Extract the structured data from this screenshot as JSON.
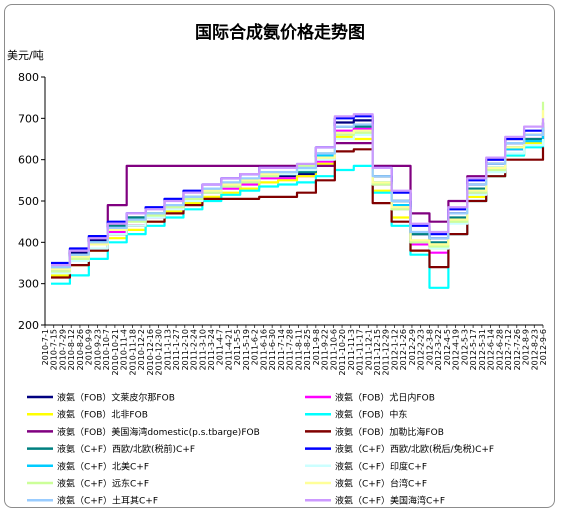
{
  "chart_data": {
    "type": "line",
    "title": "国际合成氨价格走势图",
    "ylabel": "美元/吨",
    "ylim": [
      200,
      800
    ],
    "yticks": [
      200,
      300,
      400,
      500,
      600,
      700,
      800
    ],
    "grid": false,
    "legend_position": "bottom",
    "x_tick_labels": [
      "2010-7-1",
      "2010-7-15",
      "2010-7-29",
      "2010-8-12",
      "2010-8-26",
      "2010-9-9",
      "2010-9-23",
      "2010-10-7",
      "2010-10-21",
      "2010-11-4",
      "2010-11-18",
      "2010-12-2",
      "2010-12-16",
      "2010-12-30",
      "2011-1-13",
      "2011-1-27",
      "2011-2-10",
      "2011-2-24",
      "2011-3-10",
      "2011-3-24",
      "2011-4-7",
      "2011-4-21",
      "2011-5-5",
      "2011-5-19",
      "2011-6-2",
      "2011-6-16",
      "2011-6-30",
      "2011-7-14",
      "2011-7-28",
      "2011-8-11",
      "2011-8-25",
      "2011-9-8",
      "2011-9-22",
      "2011-10-6",
      "2011-10-20",
      "2011-11-3",
      "2011-11-17",
      "2011-12-1",
      "2011-12-15",
      "2011-12-29",
      "2012-1-12",
      "2012-1-26",
      "2012-2-9",
      "2012-2-23",
      "2012-3-8",
      "2012-3-22",
      "2012-4-5",
      "2012-4-19",
      "2012-5-3",
      "2012-5-17",
      "2012-5-31",
      "2012-6-14",
      "2012-6-28",
      "2012-7-12",
      "2012-7-26",
      "2012-8-9",
      "2012-8-23",
      "2012-9-6"
    ],
    "x": [
      "2010-7",
      "2010-8",
      "2010-9",
      "2010-10",
      "2010-11",
      "2010-12",
      "2011-1",
      "2011-2",
      "2011-3",
      "2011-4",
      "2011-5",
      "2011-6",
      "2011-7",
      "2011-8",
      "2011-9",
      "2011-10",
      "2011-11",
      "2011-12",
      "2012-1",
      "2012-2",
      "2012-3",
      "2012-4",
      "2012-5",
      "2012-6",
      "2012-7",
      "2012-8",
      "2012-9"
    ],
    "series": [
      {
        "name": "液氨（FOB）文莱皮尔那FOB",
        "color": "#000080",
        "values": [
          345,
          375,
          405,
          440,
          460,
          470,
          490,
          510,
          525,
          535,
          545,
          560,
          560,
          565,
          610,
          690,
          695,
          560,
          500,
          420,
          410,
          470,
          540,
          590,
          640,
          660,
          690
        ]
      },
      {
        "name": "液氨（FOB）尤日内FOB",
        "color": "#ff00ff",
        "values": [
          330,
          360,
          395,
          425,
          440,
          460,
          485,
          505,
          520,
          530,
          540,
          555,
          555,
          560,
          595,
          670,
          675,
          540,
          480,
          395,
          375,
          450,
          520,
          575,
          625,
          650,
          675
        ]
      },
      {
        "name": "液氨（FOB）北非FOB",
        "color": "#ffff00",
        "values": [
          320,
          345,
          380,
          410,
          430,
          450,
          475,
          495,
          510,
          520,
          530,
          545,
          550,
          560,
          590,
          655,
          650,
          525,
          460,
          380,
          385,
          450,
          510,
          560,
          610,
          640,
          660
        ]
      },
      {
        "name": "液氨（FOB）中东",
        "color": "#00ffff",
        "values": [
          300,
          320,
          360,
          400,
          420,
          440,
          460,
          480,
          500,
          515,
          525,
          535,
          540,
          545,
          560,
          575,
          585,
          520,
          440,
          370,
          290,
          420,
          500,
          560,
          610,
          630,
          650
        ]
      },
      {
        "name": "液氨（FOB）美国海湾domestic(p.s.tbarge)FOB",
        "color": "#800080",
        "values": [
          340,
          380,
          410,
          490,
          585,
          585,
          585,
          585,
          585,
          585,
          585,
          585,
          585,
          585,
          585,
          640,
          640,
          585,
          585,
          470,
          450,
          500,
          560,
          600,
          650,
          660,
          680
        ]
      },
      {
        "name": "液氨（FOB）加勒比海FOB",
        "color": "#800000",
        "values": [
          315,
          345,
          380,
          420,
          440,
          450,
          470,
          490,
          505,
          505,
          505,
          510,
          510,
          520,
          550,
          620,
          625,
          495,
          450,
          380,
          340,
          420,
          500,
          560,
          600,
          600,
          630
        ]
      },
      {
        "name": "液氨（C+F）西欧/北欧(税前)C+F",
        "color": "#008080",
        "values": [
          340,
          370,
          400,
          440,
          460,
          470,
          490,
          510,
          525,
          540,
          550,
          565,
          565,
          570,
          615,
          680,
          680,
          560,
          500,
          420,
          400,
          460,
          530,
          580,
          630,
          650,
          670
        ]
      },
      {
        "name": "液氨（C+F）西欧/北欧(税后/免税)C+F",
        "color": "#0000ff",
        "values": [
          350,
          385,
          415,
          450,
          470,
          485,
          505,
          525,
          540,
          555,
          565,
          580,
          580,
          585,
          630,
          700,
          705,
          580,
          520,
          440,
          420,
          480,
          550,
          600,
          650,
          670,
          690
        ]
      },
      {
        "name": "液氨（C+F）北美C+F",
        "color": "#00ccff",
        "values": [
          335,
          365,
          400,
          435,
          455,
          470,
          490,
          510,
          525,
          540,
          550,
          565,
          570,
          575,
          610,
          665,
          670,
          545,
          490,
          400,
          390,
          455,
          525,
          580,
          625,
          645,
          660
        ]
      },
      {
        "name": "液氨（C+F）印度C+F",
        "color": "#ccffff",
        "values": [
          325,
          355,
          385,
          420,
          440,
          460,
          480,
          500,
          520,
          535,
          545,
          560,
          565,
          575,
          600,
          650,
          660,
          540,
          480,
          400,
          385,
          445,
          515,
          570,
          615,
          635,
          650
        ]
      },
      {
        "name": "液氨（C+F）远东C+F",
        "color": "#ccff99",
        "values": [
          330,
          360,
          395,
          430,
          450,
          465,
          485,
          505,
          520,
          535,
          545,
          560,
          570,
          585,
          605,
          660,
          665,
          540,
          480,
          400,
          390,
          450,
          520,
          575,
          630,
          660,
          740
        ]
      },
      {
        "name": "液氨（C+F）台湾C+F",
        "color": "#ffff99",
        "values": [
          335,
          365,
          395,
          430,
          455,
          470,
          490,
          510,
          525,
          540,
          550,
          565,
          570,
          580,
          605,
          665,
          670,
          545,
          485,
          405,
          395,
          455,
          525,
          580,
          630,
          660,
          720
        ]
      },
      {
        "name": "液氨（C+F）土耳其C+F",
        "color": "#99ccff",
        "values": [
          340,
          370,
          400,
          435,
          455,
          470,
          490,
          510,
          530,
          545,
          555,
          570,
          570,
          580,
          615,
          680,
          685,
          560,
          500,
          425,
          410,
          470,
          540,
          590,
          640,
          660,
          680
        ]
      },
      {
        "name": "液氨（C+F）美国海湾C+F",
        "color": "#cc99ff",
        "values": [
          345,
          380,
          410,
          445,
          470,
          480,
          500,
          520,
          540,
          555,
          565,
          580,
          580,
          590,
          630,
          705,
          710,
          580,
          525,
          445,
          425,
          485,
          555,
          605,
          655,
          680,
          700
        ]
      }
    ]
  }
}
